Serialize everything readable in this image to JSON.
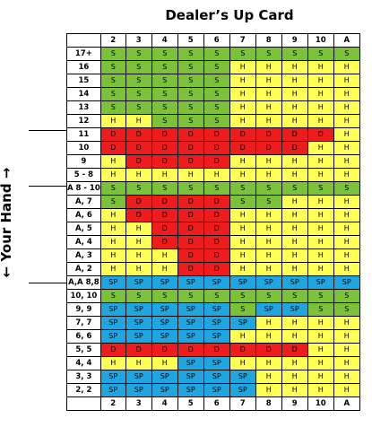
{
  "title": "Dealer’s Up Card",
  "side_label": "← Your Hand →",
  "dealer_cards": [
    "2",
    "3",
    "4",
    "5",
    "6",
    "7",
    "8",
    "9",
    "10",
    "A"
  ],
  "colors": {
    "H": "#ffff55",
    "S": "#7cc13a",
    "D": "#ee1c1c",
    "SP": "#1fa6e0"
  },
  "rows": [
    {
      "hand": "17+",
      "actions": [
        "S",
        "S",
        "S",
        "S",
        "S",
        "S",
        "S",
        "S",
        "S",
        "S"
      ]
    },
    {
      "hand": "16",
      "actions": [
        "S",
        "S",
        "S",
        "S",
        "S",
        "H",
        "H",
        "H",
        "H",
        "H"
      ]
    },
    {
      "hand": "15",
      "actions": [
        "S",
        "S",
        "S",
        "S",
        "S",
        "H",
        "H",
        "H",
        "H",
        "H"
      ]
    },
    {
      "hand": "14",
      "actions": [
        "S",
        "S",
        "S",
        "S",
        "S",
        "H",
        "H",
        "H",
        "H",
        "H"
      ]
    },
    {
      "hand": "13",
      "actions": [
        "S",
        "S",
        "S",
        "S",
        "S",
        "H",
        "H",
        "H",
        "H",
        "H"
      ]
    },
    {
      "hand": "12",
      "actions": [
        "H",
        "H",
        "S",
        "S",
        "S",
        "H",
        "H",
        "H",
        "H",
        "H"
      ]
    },
    {
      "hand": "11",
      "actions": [
        "D",
        "D",
        "D",
        "D",
        "D",
        "D",
        "D",
        "D",
        "D",
        "H"
      ]
    },
    {
      "hand": "10",
      "actions": [
        "D",
        "D",
        "D",
        "D",
        "D",
        "D",
        "D",
        "D",
        "H",
        "H"
      ]
    },
    {
      "hand": "9",
      "actions": [
        "H",
        "D",
        "D",
        "D",
        "D",
        "H",
        "H",
        "H",
        "H",
        "H"
      ]
    },
    {
      "hand": "5 - 8",
      "actions": [
        "H",
        "H",
        "H",
        "H",
        "H",
        "H",
        "H",
        "H",
        "H",
        "H"
      ]
    },
    {
      "hand": "A 8 - 10",
      "actions": [
        "S",
        "S",
        "S",
        "S",
        "S",
        "S",
        "S",
        "S",
        "S",
        "S"
      ]
    },
    {
      "hand": "A, 7",
      "actions": [
        "S",
        "D",
        "D",
        "D",
        "D",
        "S",
        "S",
        "H",
        "H",
        "H"
      ]
    },
    {
      "hand": "A, 6",
      "actions": [
        "H",
        "D",
        "D",
        "D",
        "D",
        "H",
        "H",
        "H",
        "H",
        "H"
      ]
    },
    {
      "hand": "A, 5",
      "actions": [
        "H",
        "H",
        "D",
        "D",
        "D",
        "H",
        "H",
        "H",
        "H",
        "H"
      ]
    },
    {
      "hand": "A, 4",
      "actions": [
        "H",
        "H",
        "D",
        "D",
        "D",
        "H",
        "H",
        "H",
        "H",
        "H"
      ]
    },
    {
      "hand": "A, 3",
      "actions": [
        "H",
        "H",
        "H",
        "D",
        "D",
        "H",
        "H",
        "H",
        "H",
        "H"
      ]
    },
    {
      "hand": "A, 2",
      "actions": [
        "H",
        "H",
        "H",
        "D",
        "D",
        "H",
        "H",
        "H",
        "H",
        "H"
      ]
    },
    {
      "hand": "A,A 8,8",
      "actions": [
        "SP",
        "SP",
        "SP",
        "SP",
        "SP",
        "SP",
        "SP",
        "SP",
        "SP",
        "SP"
      ]
    },
    {
      "hand": "10, 10",
      "actions": [
        "S",
        "S",
        "S",
        "S",
        "S",
        "S",
        "S",
        "S",
        "S",
        "S"
      ]
    },
    {
      "hand": "9, 9",
      "actions": [
        "SP",
        "SP",
        "SP",
        "SP",
        "SP",
        "S",
        "SP",
        "SP",
        "S",
        "S"
      ]
    },
    {
      "hand": "7, 7",
      "actions": [
        "SP",
        "SP",
        "SP",
        "SP",
        "SP",
        "SP",
        "H",
        "H",
        "H",
        "H"
      ]
    },
    {
      "hand": "6, 6",
      "actions": [
        "SP",
        "SP",
        "SP",
        "SP",
        "SP",
        "H",
        "H",
        "H",
        "H",
        "H"
      ]
    },
    {
      "hand": "5, 5",
      "actions": [
        "D",
        "D",
        "D",
        "D",
        "D",
        "D",
        "D",
        "D",
        "H",
        "H"
      ]
    },
    {
      "hand": "4, 4",
      "actions": [
        "H",
        "H",
        "H",
        "SP",
        "SP",
        "H",
        "H",
        "H",
        "H",
        "H"
      ]
    },
    {
      "hand": "3, 3",
      "actions": [
        "SP",
        "SP",
        "SP",
        "SP",
        "SP",
        "SP",
        "H",
        "H",
        "H",
        "H"
      ]
    },
    {
      "hand": "2, 2",
      "actions": [
        "SP",
        "SP",
        "SP",
        "SP",
        "SP",
        "SP",
        "H",
        "H",
        "H",
        "H"
      ]
    }
  ]
}
